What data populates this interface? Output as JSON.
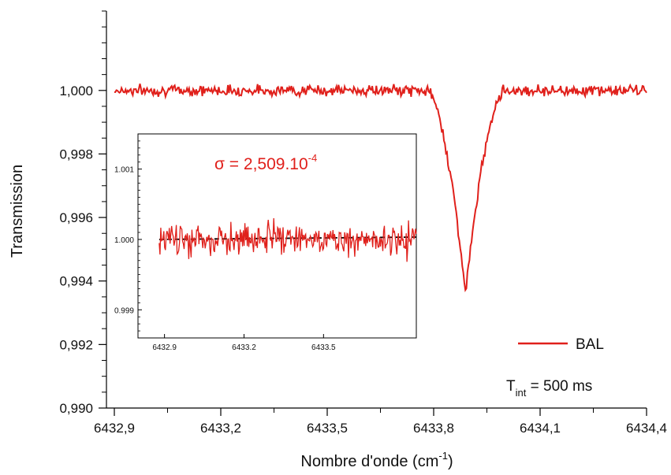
{
  "chart_data": [
    {
      "type": "line",
      "xlabel": "Nombre d'onde (cm",
      "xlabel_superscript": "-1",
      "xlabel_suffix": ")",
      "ylabel": "Transmission",
      "xlim": [
        6432.9,
        6434.4
      ],
      "ylim": [
        0.99,
        1.0025
      ],
      "x_ticks": [
        "6432,9",
        "6433,2",
        "6433,5",
        "6433,8",
        "6434,1",
        "6434,4"
      ],
      "x_tick_values": [
        6432.9,
        6433.2,
        6433.5,
        6433.8,
        6434.1,
        6434.4
      ],
      "y_ticks": [
        "0,990",
        "0,992",
        "0,994",
        "0,996",
        "0,998",
        "1,000"
      ],
      "y_tick_values": [
        0.99,
        0.992,
        0.994,
        0.996,
        0.998,
        1.0
      ],
      "series": [
        {
          "name": "BAL",
          "color": "#e0201b",
          "baseline": 1.0,
          "noise_amplitude": 0.00025,
          "absorption_dip": {
            "center": 6433.89,
            "min_value": 0.9936,
            "x_range": [
              6433.78,
              6434.0
            ]
          }
        }
      ],
      "legend": {
        "label": "BAL",
        "placement": "bottom-right"
      },
      "annotation": {
        "prefix": "T",
        "subscript": "int",
        "suffix": " = 500 ms"
      }
    },
    {
      "type": "line",
      "inset": true,
      "xlim": [
        6432.8,
        6433.85
      ],
      "ylim": [
        0.9986,
        1.0015
      ],
      "x_ticks": [
        "6432.9",
        "6433.2",
        "6433.5"
      ],
      "x_tick_values": [
        6432.9,
        6433.2,
        6433.5
      ],
      "y_ticks": [
        "0.999",
        "1.000",
        "1.001"
      ],
      "y_tick_values": [
        0.999,
        1.0,
        1.001
      ],
      "series": [
        {
          "name": "",
          "color": "#e0201b",
          "baseline": 1.0,
          "noise_amplitude": 0.00025,
          "x_range": [
            6432.88,
            6433.85
          ]
        }
      ],
      "reference_line": {
        "y": 1.0,
        "style": "dashed",
        "color": "#000000"
      },
      "annotation": {
        "prefix": "σ = 2,509.10",
        "superscript": "-4"
      }
    }
  ]
}
